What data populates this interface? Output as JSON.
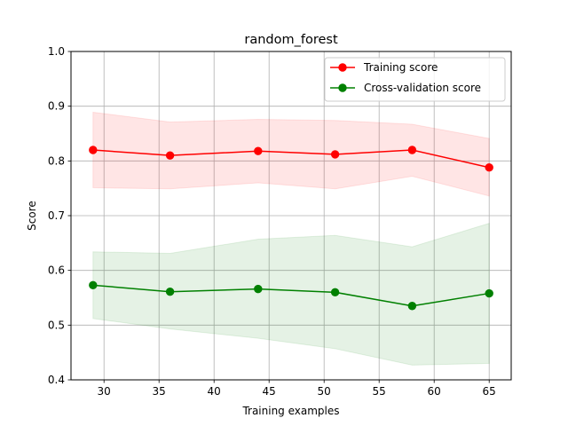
{
  "chart_data": {
    "type": "line",
    "title": "random_forest",
    "xlabel": "Training examples",
    "ylabel": "Score",
    "xlim": [
      27,
      67
    ],
    "ylim": [
      0.4,
      1.0
    ],
    "xticks": [
      30,
      35,
      40,
      45,
      50,
      55,
      60,
      65
    ],
    "yticks": [
      0.4,
      0.5,
      0.6,
      0.7,
      0.8,
      0.9,
      1.0
    ],
    "xtick_labels": [
      "30",
      "35",
      "40",
      "45",
      "50",
      "55",
      "60",
      "65"
    ],
    "ytick_labels": [
      "0.4",
      "0.5",
      "0.6",
      "0.7",
      "0.8",
      "0.9",
      "1.0"
    ],
    "grid": true,
    "legend_position": "upper right",
    "x": [
      29,
      36,
      44,
      51,
      58,
      65
    ],
    "series": [
      {
        "name": "Training score",
        "color": "#ff0000",
        "values": [
          0.82,
          0.81,
          0.818,
          0.812,
          0.82,
          0.788
        ],
        "band_upper": [
          0.889,
          0.871,
          0.876,
          0.874,
          0.867,
          0.841
        ],
        "band_lower": [
          0.751,
          0.749,
          0.76,
          0.749,
          0.772,
          0.736
        ],
        "band_color": "#ff0000"
      },
      {
        "name": "Cross-validation score",
        "color": "#008000",
        "values": [
          0.573,
          0.561,
          0.566,
          0.56,
          0.535,
          0.558
        ],
        "band_upper": [
          0.634,
          0.631,
          0.657,
          0.664,
          0.643,
          0.686
        ],
        "band_lower": [
          0.512,
          0.493,
          0.476,
          0.457,
          0.427,
          0.43
        ],
        "band_color": "#008000"
      }
    ]
  }
}
